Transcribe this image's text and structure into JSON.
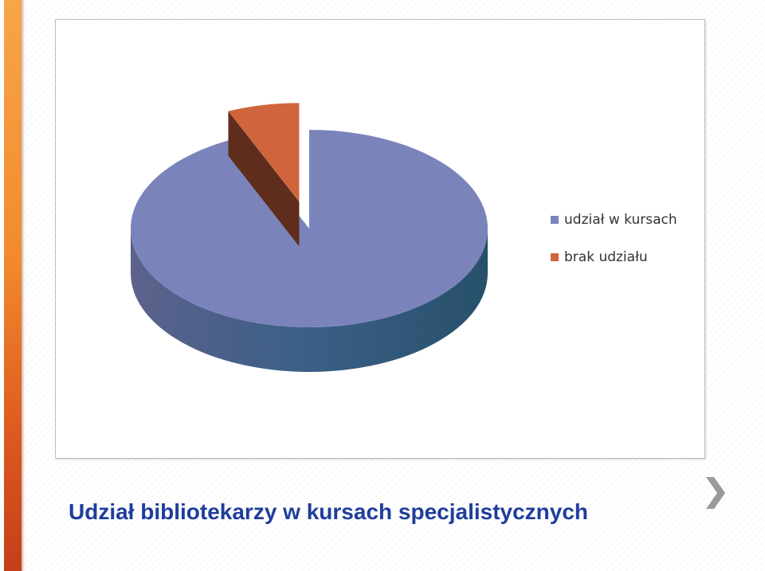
{
  "slide": {
    "title": "Udział bibliotekarzy w kursach specjalistycznych",
    "accent_color": "#f28a2e",
    "title_color": "#1f3d9c",
    "nav_icon": "chevron-right-icon"
  },
  "chart_data": {
    "type": "pie",
    "style": "3d-exploded",
    "title": "",
    "categories": [
      "udział w kursach",
      "brak udziału"
    ],
    "values": [
      93.5,
      6.5
    ],
    "unit": "%",
    "colors": [
      "#7b83bb",
      "#d0653d"
    ],
    "exploded": [
      false,
      true
    ],
    "legend_position": "right"
  }
}
